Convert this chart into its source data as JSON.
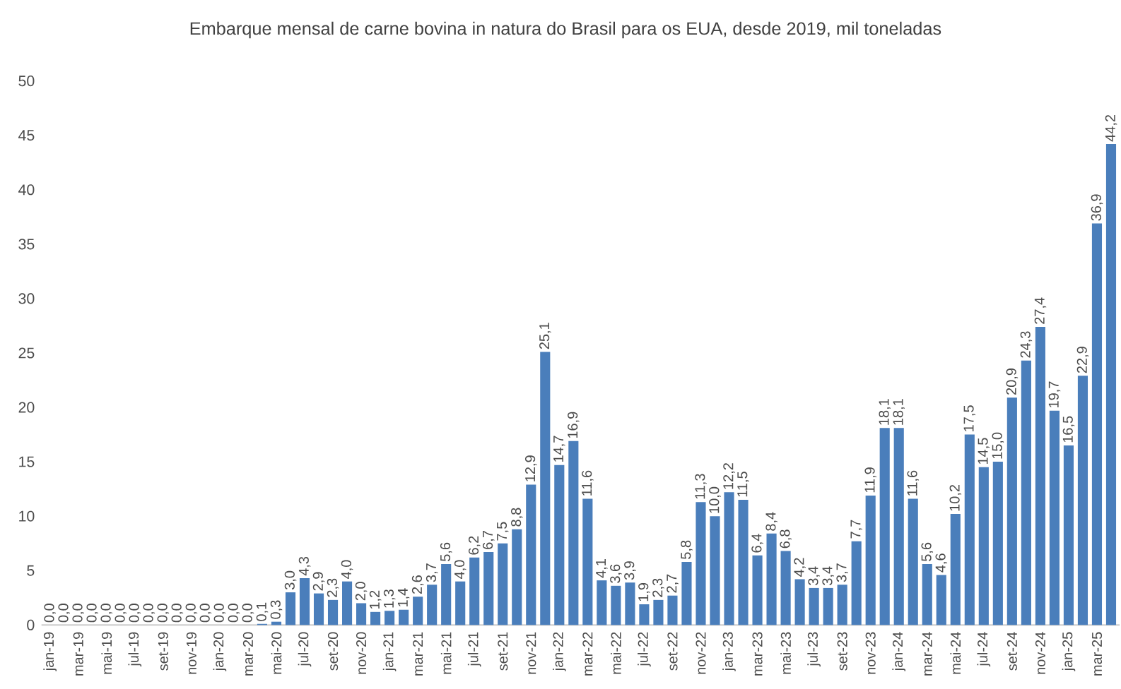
{
  "chart_data": {
    "type": "bar",
    "title": "Embarque mensal de carne bovina in natura do Brasil para os EUA, desde 2019, mil toneladas",
    "categories": [
      "jan-19",
      null,
      "mar-19",
      null,
      "mai-19",
      null,
      "jul-19",
      null,
      "set-19",
      null,
      "nov-19",
      null,
      "jan-20",
      null,
      "mar-20",
      null,
      "mai-20",
      null,
      "jul-20",
      null,
      "set-20",
      null,
      "nov-20",
      null,
      "jan-21",
      null,
      "mar-21",
      null,
      "mai-21",
      null,
      "jul-21",
      null,
      "set-21",
      null,
      "nov-21",
      null,
      "jan-22",
      null,
      "mar-22",
      null,
      "mai-22",
      null,
      "jul-22",
      null,
      "set-22",
      null,
      "nov-22",
      null,
      "jan-23",
      null,
      "mar-23",
      null,
      "mai-23",
      null,
      "jul-23",
      null,
      "set-23",
      null,
      "nov-23",
      null,
      "jan-24",
      null,
      "mar-24",
      null,
      "mai-24",
      null,
      "jul-24",
      null,
      "set-24",
      null,
      "nov-24",
      null,
      "jan-25",
      null,
      "mar-25",
      null
    ],
    "values": [
      0,
      0,
      0,
      0,
      0,
      0,
      0,
      0,
      0,
      0,
      0,
      0,
      0,
      0,
      0,
      0.1,
      0.3,
      3.0,
      4.3,
      2.9,
      2.3,
      4.0,
      2.0,
      1.2,
      1.3,
      1.4,
      2.6,
      3.7,
      5.6,
      4.0,
      6.2,
      6.7,
      7.5,
      8.8,
      12.9,
      25.1,
      14.7,
      16.9,
      11.6,
      4.1,
      3.6,
      3.9,
      1.9,
      2.3,
      2.7,
      5.8,
      11.3,
      10.0,
      12.2,
      11.5,
      6.4,
      8.4,
      6.8,
      4.2,
      3.4,
      3.4,
      3.7,
      7.7,
      11.9,
      18.1,
      18.1,
      11.6,
      5.6,
      4.6,
      10.2,
      17.5,
      14.5,
      15.0,
      20.9,
      24.3,
      27.4,
      19.7,
      16.5,
      22.9,
      36.9,
      44.2
    ],
    "value_labels": [
      "0,0",
      "0,0",
      "0,0",
      "0,0",
      "0,0",
      "0,0",
      "0,0",
      "0,0",
      "0,0",
      "0,0",
      "0,0",
      "0,0",
      "0,0",
      "0,0",
      "0,0",
      "0,1",
      "0,3",
      "3,0",
      "4,3",
      "2,9",
      "2,3",
      "4,0",
      "2,0",
      "1,2",
      "1,3",
      "1,4",
      "2,6",
      "3,7",
      "5,6",
      "4,0",
      "6,2",
      "6,7",
      "7,5",
      "8,8",
      "12,9",
      "25,1",
      "14,7",
      "16,9",
      "11,6",
      "4,1",
      "3,6",
      "3,9",
      "1,9",
      "2,3",
      "2,7",
      "5,8",
      "11,3",
      "10,0",
      "12,2",
      "11,5",
      "6,4",
      "8,4",
      "6,8",
      "4,2",
      "3,4",
      "3,4",
      "3,7",
      "7,7",
      "11,9",
      "18,1",
      "18,1",
      "11,6",
      "5,6",
      "4,6",
      "10,2",
      "17,5",
      "14,5",
      "15,0",
      "20,9",
      "24,3",
      "27,4",
      "19,7",
      "16,5",
      "22,9",
      "36,9",
      "44,2"
    ],
    "color": "#4a7ebb",
    "ylim": [
      0,
      50
    ],
    "yticks": [
      0,
      5,
      10,
      15,
      20,
      25,
      30,
      35,
      40,
      45,
      50
    ]
  }
}
